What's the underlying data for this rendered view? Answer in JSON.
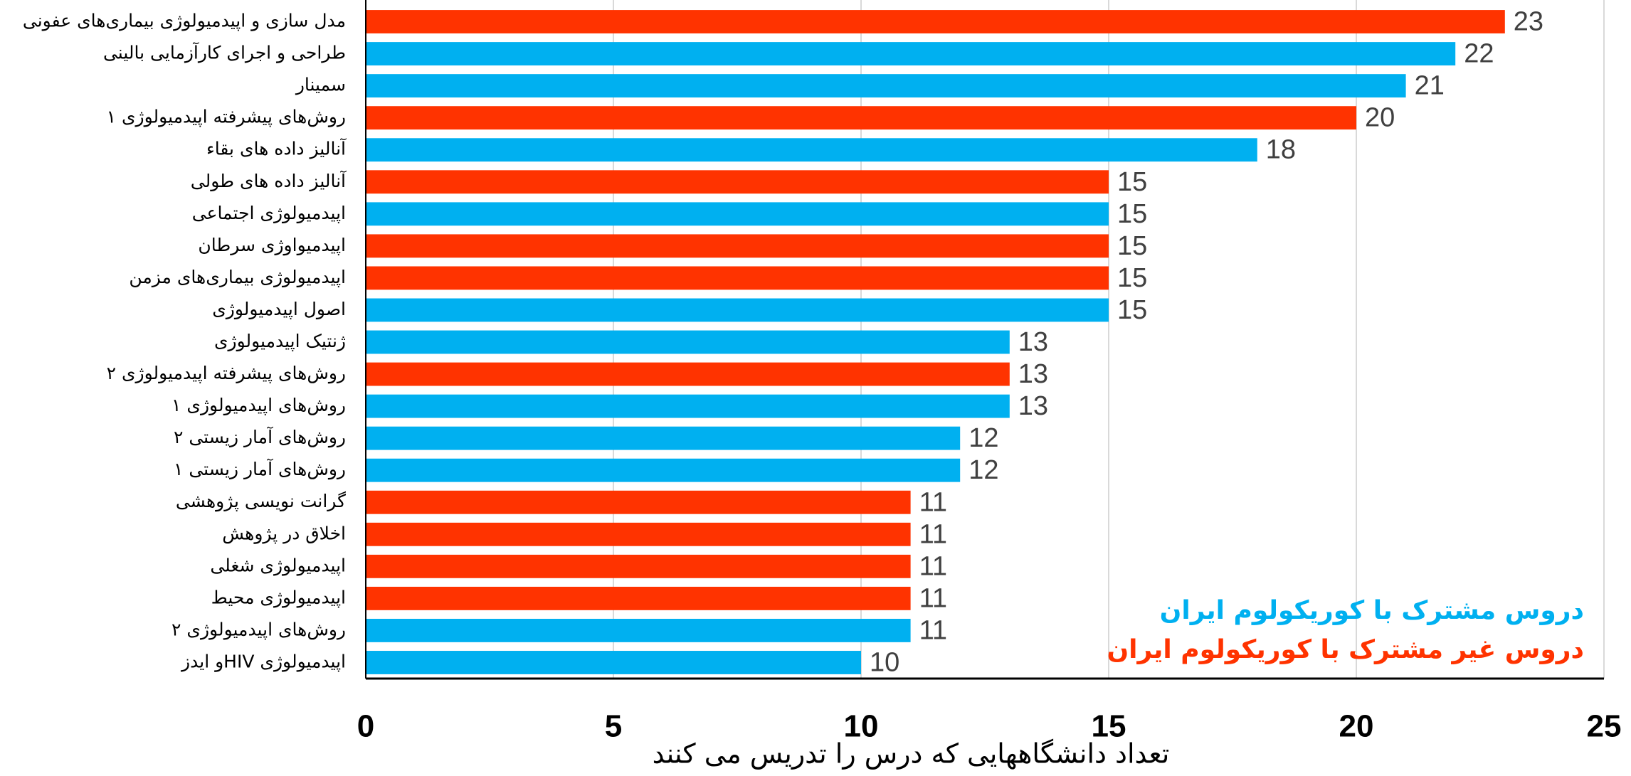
{
  "chart_data": {
    "type": "bar",
    "orientation": "horizontal",
    "xlabel": "تعداد دانشگاههایی که درس را تدریس می کنند",
    "categories": [
      "مدل سازی و اپیدمیولوژی بیماری‌های عفونی",
      "طراحی و اجرای کارآزمایی بالینی",
      "سمینار",
      "روش‌های پیشرفته اپیدمیولوژی ۱",
      "آنالیز داده های بقاء",
      "آنالیز داده های طولی",
      "اپیدمیولوژی اجتماعی",
      "اپیدمیواوژی سرطان",
      "اپیدمیولوژی بیماری‌های مزمن",
      "اصول اپیدمیولوژی",
      "ژنتیک اپیدمیولوژی",
      "روش‌های پیشرفته اپیدمیولوژی ۲",
      "روش‌های اپیدمیولوژی ۱",
      "روش‌های آمار زیستی ۲",
      "روش‌های آمار زیستی ۱",
      "گرانت نویسی پژوهشی",
      "اخلاق در پژوهش",
      "اپیدمیولوژی شغلی",
      "اپیدمیولوژی محیط",
      "روش‌های اپیدمیولوژی ۲",
      "اپیدمیولوژی  HIVو ایدز"
    ],
    "series": [
      {
        "name": "دروس مشترک با کوریکولوم  ایران",
        "color": "#00b0f0",
        "values": [
          null,
          22,
          21,
          null,
          18,
          null,
          15,
          null,
          null,
          15,
          13,
          null,
          13,
          12,
          12,
          null,
          null,
          null,
          null,
          11,
          10
        ]
      },
      {
        "name": "دروس غیر مشترک با کوریکولوم ایران",
        "color": "#ff3300",
        "values": [
          23,
          null,
          null,
          20,
          null,
          15,
          null,
          15,
          15,
          null,
          null,
          13,
          null,
          null,
          null,
          11,
          11,
          11,
          11,
          null,
          null
        ]
      }
    ],
    "xlim": [
      0,
      25
    ],
    "xticks": [
      0,
      5,
      10,
      15,
      20,
      25
    ],
    "grid": true,
    "legend": "lower right"
  }
}
